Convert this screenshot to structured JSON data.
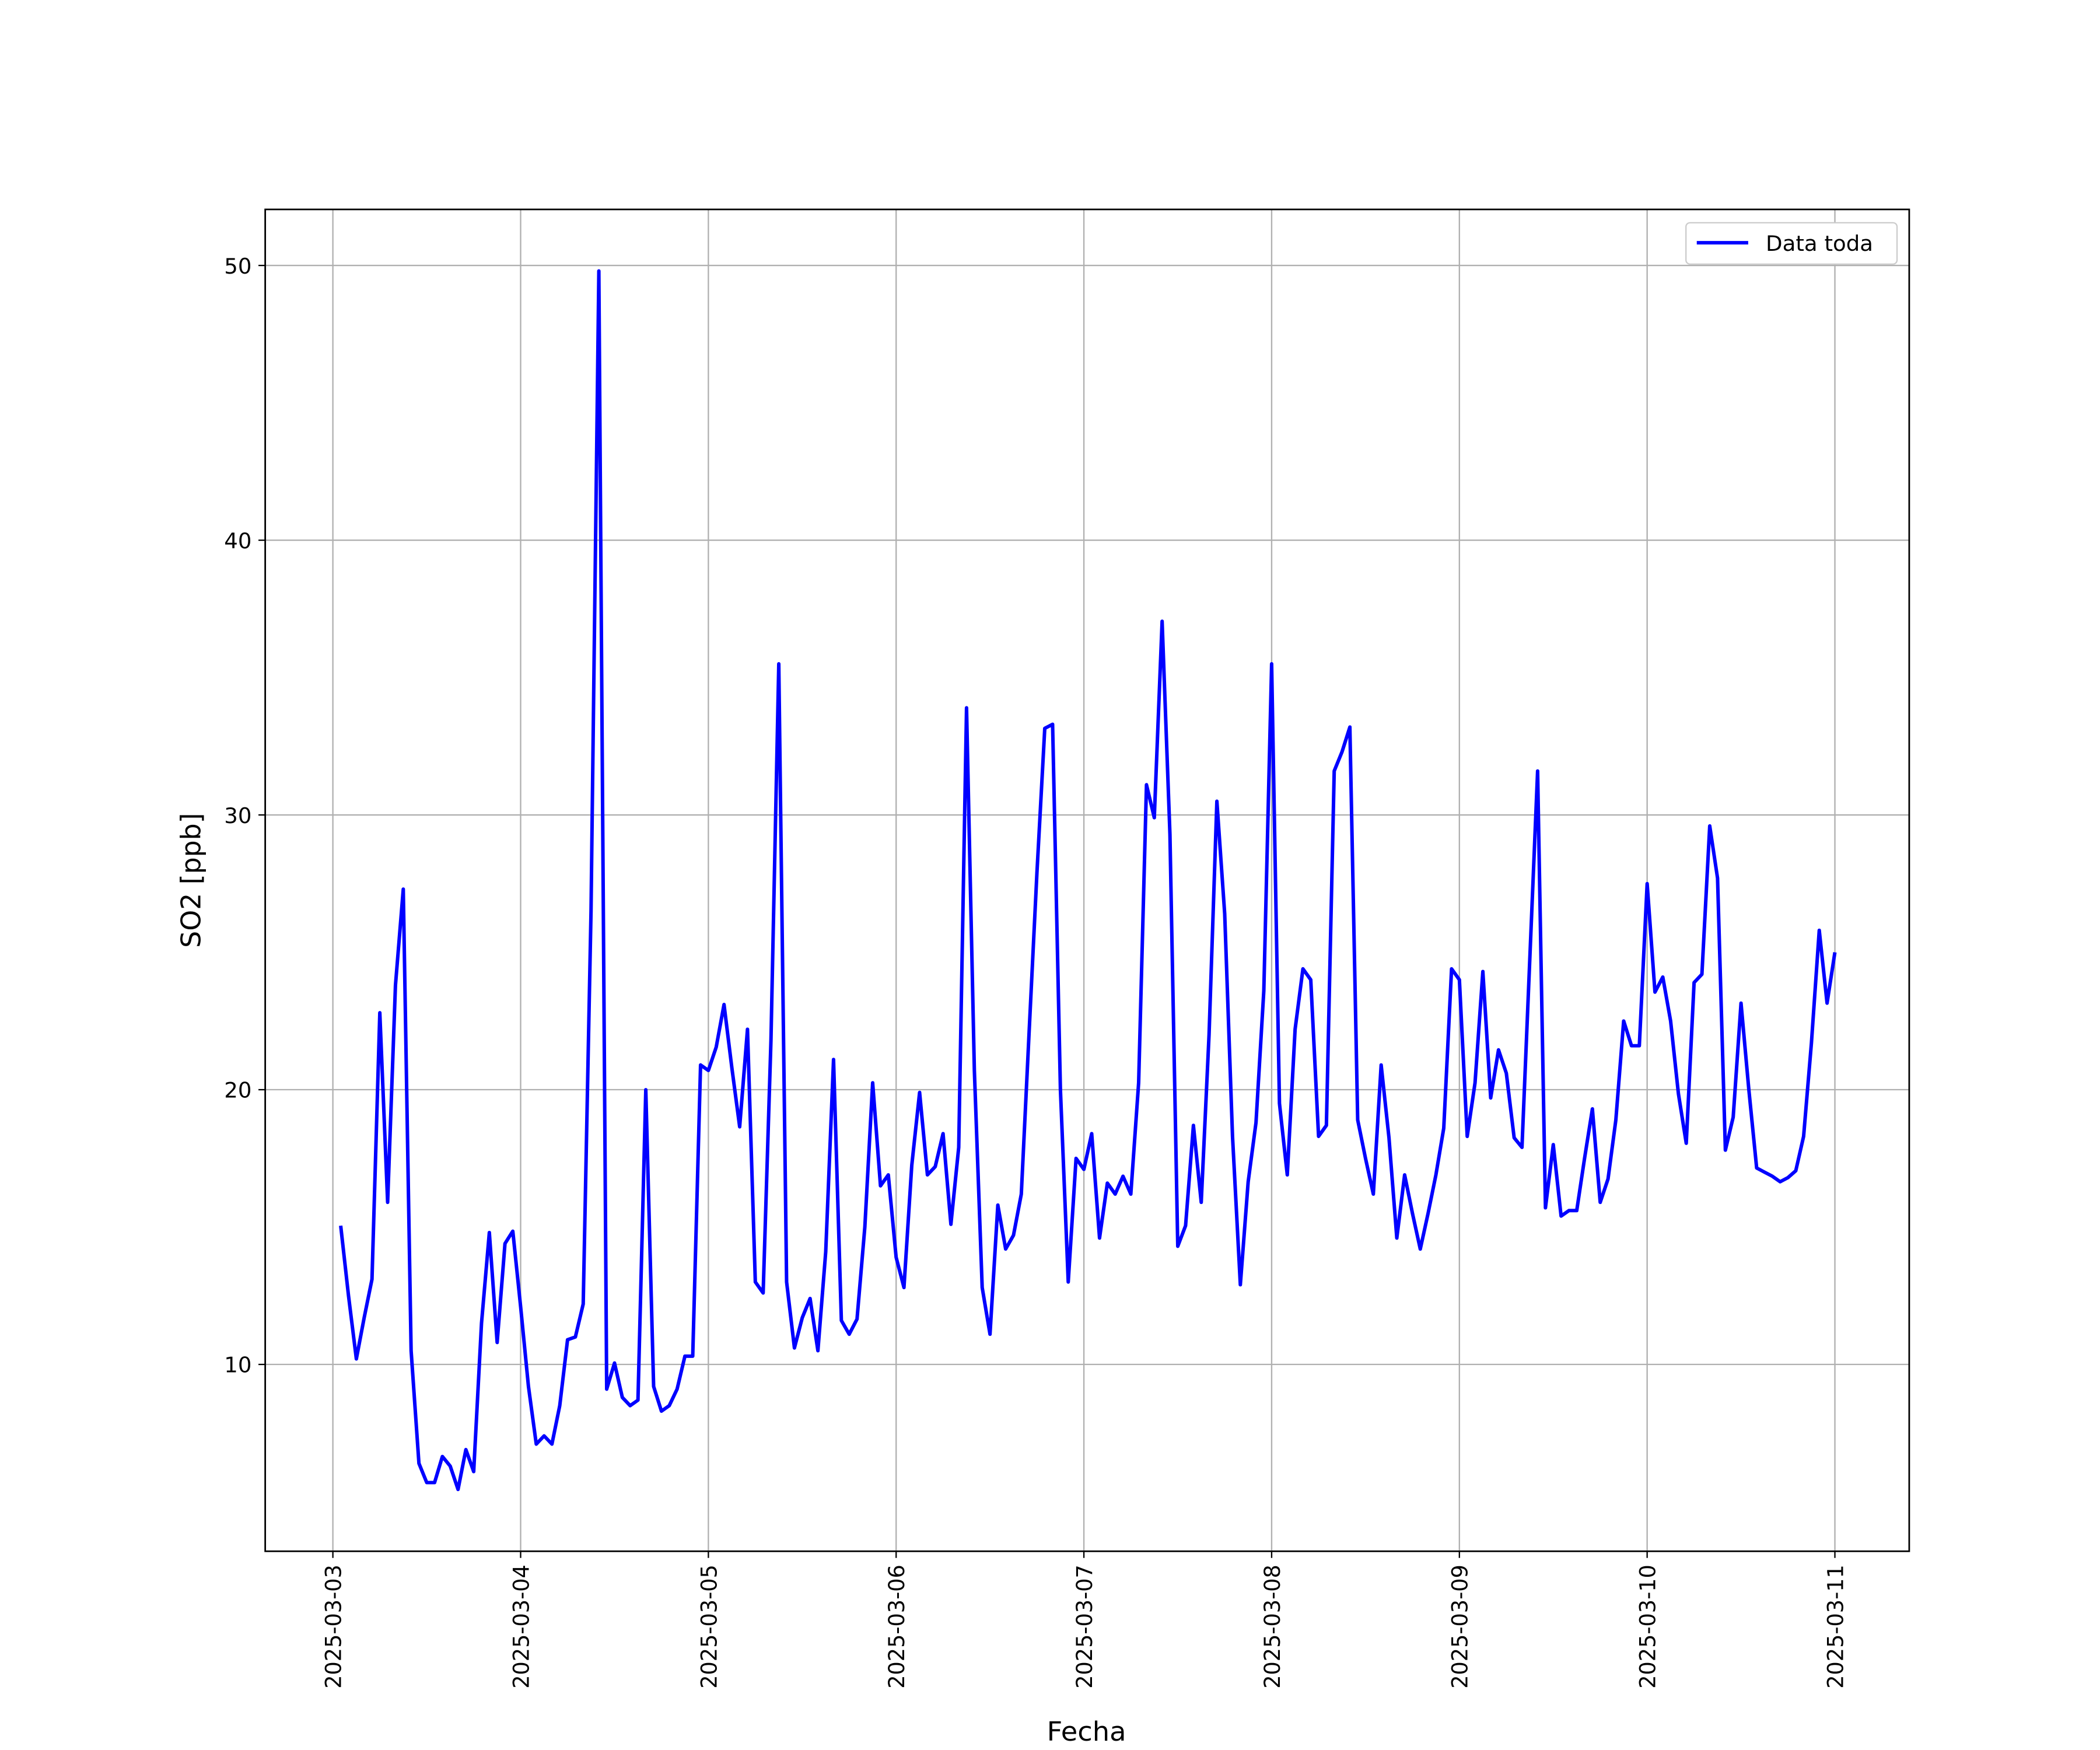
{
  "chart_data": {
    "type": "line",
    "xlabel": "Fecha",
    "ylabel": "SO2 [ppb]",
    "x": [
      "2025-03-03 01:00",
      "2025-03-03 02:00",
      "2025-03-03 03:00",
      "2025-03-03 04:00",
      "2025-03-03 05:00",
      "2025-03-03 06:00",
      "2025-03-03 07:00",
      "2025-03-03 08:00",
      "2025-03-03 09:00",
      "2025-03-03 10:00",
      "2025-03-03 11:00",
      "2025-03-03 12:00",
      "2025-03-03 13:00",
      "2025-03-03 14:00",
      "2025-03-03 15:00",
      "2025-03-03 16:00",
      "2025-03-03 17:00",
      "2025-03-03 18:00",
      "2025-03-03 19:00",
      "2025-03-03 20:00",
      "2025-03-03 21:00",
      "2025-03-03 22:00",
      "2025-03-03 23:00",
      "2025-03-04 00:00",
      "2025-03-04 01:00",
      "2025-03-04 02:00",
      "2025-03-04 03:00",
      "2025-03-04 04:00",
      "2025-03-04 05:00",
      "2025-03-04 06:00",
      "2025-03-04 07:00",
      "2025-03-04 08:00",
      "2025-03-04 09:00",
      "2025-03-04 10:00",
      "2025-03-04 11:00",
      "2025-03-04 12:00",
      "2025-03-04 13:00",
      "2025-03-04 14:00",
      "2025-03-04 15:00",
      "2025-03-04 16:00",
      "2025-03-04 17:00",
      "2025-03-04 18:00",
      "2025-03-04 19:00",
      "2025-03-04 20:00",
      "2025-03-04 21:00",
      "2025-03-04 22:00",
      "2025-03-04 23:00",
      "2025-03-05 00:00",
      "2025-03-05 01:00",
      "2025-03-05 02:00",
      "2025-03-05 03:00",
      "2025-03-05 04:00",
      "2025-03-05 05:00",
      "2025-03-05 06:00",
      "2025-03-05 07:00",
      "2025-03-05 08:00",
      "2025-03-05 09:00",
      "2025-03-05 10:00",
      "2025-03-05 11:00",
      "2025-03-05 12:00",
      "2025-03-05 13:00",
      "2025-03-05 14:00",
      "2025-03-05 15:00",
      "2025-03-05 16:00",
      "2025-03-05 17:00",
      "2025-03-05 18:00",
      "2025-03-05 19:00",
      "2025-03-05 20:00",
      "2025-03-05 21:00",
      "2025-03-05 22:00",
      "2025-03-05 23:00",
      "2025-03-06 00:00",
      "2025-03-06 01:00",
      "2025-03-06 02:00",
      "2025-03-06 03:00",
      "2025-03-06 04:00",
      "2025-03-06 05:00",
      "2025-03-06 06:00",
      "2025-03-06 07:00",
      "2025-03-06 08:00",
      "2025-03-06 09:00",
      "2025-03-06 10:00",
      "2025-03-06 11:00",
      "2025-03-06 12:00",
      "2025-03-06 13:00",
      "2025-03-06 14:00",
      "2025-03-06 15:00",
      "2025-03-06 16:00",
      "2025-03-06 17:00",
      "2025-03-06 18:00",
      "2025-03-06 19:00",
      "2025-03-06 20:00",
      "2025-03-06 21:00",
      "2025-03-06 22:00",
      "2025-03-06 23:00",
      "2025-03-07 00:00",
      "2025-03-07 01:00",
      "2025-03-07 02:00",
      "2025-03-07 03:00",
      "2025-03-07 04:00",
      "2025-03-07 05:00",
      "2025-03-07 06:00",
      "2025-03-07 07:00",
      "2025-03-07 08:00",
      "2025-03-07 09:00",
      "2025-03-07 10:00",
      "2025-03-07 11:00",
      "2025-03-07 12:00",
      "2025-03-07 13:00",
      "2025-03-07 14:00",
      "2025-03-07 15:00",
      "2025-03-07 16:00",
      "2025-03-07 17:00",
      "2025-03-07 18:00",
      "2025-03-07 19:00",
      "2025-03-07 20:00",
      "2025-03-07 21:00",
      "2025-03-07 22:00",
      "2025-03-07 23:00",
      "2025-03-08 00:00",
      "2025-03-08 01:00",
      "2025-03-08 02:00",
      "2025-03-08 03:00",
      "2025-03-08 04:00",
      "2025-03-08 05:00",
      "2025-03-08 06:00",
      "2025-03-08 07:00",
      "2025-03-08 08:00",
      "2025-03-08 09:00",
      "2025-03-08 10:00",
      "2025-03-08 11:00",
      "2025-03-08 12:00",
      "2025-03-08 13:00",
      "2025-03-08 14:00",
      "2025-03-08 15:00",
      "2025-03-08 16:00",
      "2025-03-08 17:00",
      "2025-03-08 18:00",
      "2025-03-08 19:00",
      "2025-03-08 20:00",
      "2025-03-08 21:00",
      "2025-03-08 22:00",
      "2025-03-08 23:00",
      "2025-03-09 00:00",
      "2025-03-09 01:00",
      "2025-03-09 02:00",
      "2025-03-09 03:00",
      "2025-03-09 04:00",
      "2025-03-09 05:00",
      "2025-03-09 06:00",
      "2025-03-09 07:00",
      "2025-03-09 08:00",
      "2025-03-09 10:00",
      "2025-03-09 11:00",
      "2025-03-09 12:00",
      "2025-03-09 13:00",
      "2025-03-09 14:00",
      "2025-03-09 15:00",
      "2025-03-09 16:00",
      "2025-03-09 17:00",
      "2025-03-09 18:00",
      "2025-03-09 19:00",
      "2025-03-09 20:00",
      "2025-03-09 21:00",
      "2025-03-09 22:00",
      "2025-03-09 23:00",
      "2025-03-10 00:00",
      "2025-03-10 01:00",
      "2025-03-10 02:00",
      "2025-03-10 03:00",
      "2025-03-10 04:00",
      "2025-03-10 05:00",
      "2025-03-10 06:00",
      "2025-03-10 07:00",
      "2025-03-10 08:00",
      "2025-03-10 09:00",
      "2025-03-10 10:00",
      "2025-03-10 11:00",
      "2025-03-10 12:00",
      "2025-03-10 13:00",
      "2025-03-10 14:00",
      "2025-03-10 15:00",
      "2025-03-10 16:00",
      "2025-03-10 17:00",
      "2025-03-10 18:00",
      "2025-03-10 19:00",
      "2025-03-10 20:00",
      "2025-03-10 21:00",
      "2025-03-10 22:00",
      "2025-03-10 23:00",
      "2025-03-11 00:00"
    ],
    "series": [
      {
        "name": "Data toda",
        "color": "#0000ff",
        "values": [
          15.05,
          12.5,
          10.2,
          11.7,
          13.1,
          22.8,
          15.9,
          23.8,
          27.3,
          10.5,
          6.4,
          5.7,
          5.7,
          6.65,
          6.3,
          5.45,
          6.9,
          6.1,
          11.5,
          14.8,
          10.8,
          14.4,
          14.85,
          12.1,
          9.2,
          7.1,
          7.4,
          7.1,
          8.5,
          10.9,
          11.0,
          12.2,
          26.5,
          49.8,
          9.1,
          10.05,
          8.8,
          8.5,
          8.7,
          20.0,
          9.2,
          8.3,
          8.5,
          9.1,
          10.3,
          10.3,
          20.9,
          20.7,
          21.55,
          23.1,
          20.8,
          18.65,
          22.2,
          13.0,
          12.6,
          21.8,
          35.5,
          13.0,
          10.6,
          11.7,
          12.4,
          10.5,
          14.1,
          21.1,
          11.6,
          11.1,
          11.65,
          15.0,
          20.25,
          16.5,
          16.9,
          13.9,
          12.8,
          17.25,
          19.9,
          16.9,
          17.2,
          18.4,
          15.1,
          17.9,
          33.9,
          20.7,
          12.8,
          11.1,
          15.8,
          14.2,
          14.7,
          16.2,
          22.1,
          27.9,
          33.15,
          33.3,
          20.0,
          13.0,
          17.5,
          17.1,
          18.4,
          14.6,
          16.6,
          16.2,
          16.85,
          16.2,
          20.25,
          31.1,
          29.9,
          37.05,
          29.3,
          14.3,
          15.05,
          18.7,
          15.9,
          22.0,
          30.5,
          26.4,
          18.3,
          12.9,
          16.65,
          18.8,
          23.6,
          35.5,
          19.5,
          16.9,
          22.2,
          24.4,
          24.0,
          18.3,
          18.7,
          31.6,
          32.3,
          33.2,
          18.9,
          17.5,
          16.2,
          20.9,
          18.25,
          14.6,
          16.9,
          15.5,
          14.2,
          15.5,
          16.9,
          18.6,
          24.4,
          24.0,
          18.3,
          20.25,
          24.3,
          19.7,
          21.45,
          20.6,
          18.25,
          17.9,
          31.6,
          15.7,
          18.0,
          15.4,
          15.6,
          15.6,
          17.5,
          19.3,
          15.9,
          16.75,
          18.9,
          22.5,
          21.6,
          21.6,
          27.5,
          23.55,
          24.1,
          22.5,
          19.85,
          18.05,
          23.9,
          24.2,
          29.6,
          27.7,
          17.8,
          19.0,
          23.15,
          20.0,
          17.15,
          17.0,
          16.85,
          16.65,
          16.8,
          17.05,
          18.3,
          21.7,
          25.8,
          23.15,
          25.0
        ]
      }
    ],
    "xlim": [
      "2025-03-02 15:21",
      "2025-03-11 09:30"
    ],
    "xticks": [
      "2025-03-03",
      "2025-03-04",
      "2025-03-05",
      "2025-03-06",
      "2025-03-07",
      "2025-03-08",
      "2025-03-09",
      "2025-03-10",
      "2025-03-11"
    ],
    "ylim": [
      3.2,
      52.04
    ],
    "yticks": [
      10,
      20,
      30,
      40,
      50
    ],
    "grid": true,
    "legend": "upper right"
  }
}
